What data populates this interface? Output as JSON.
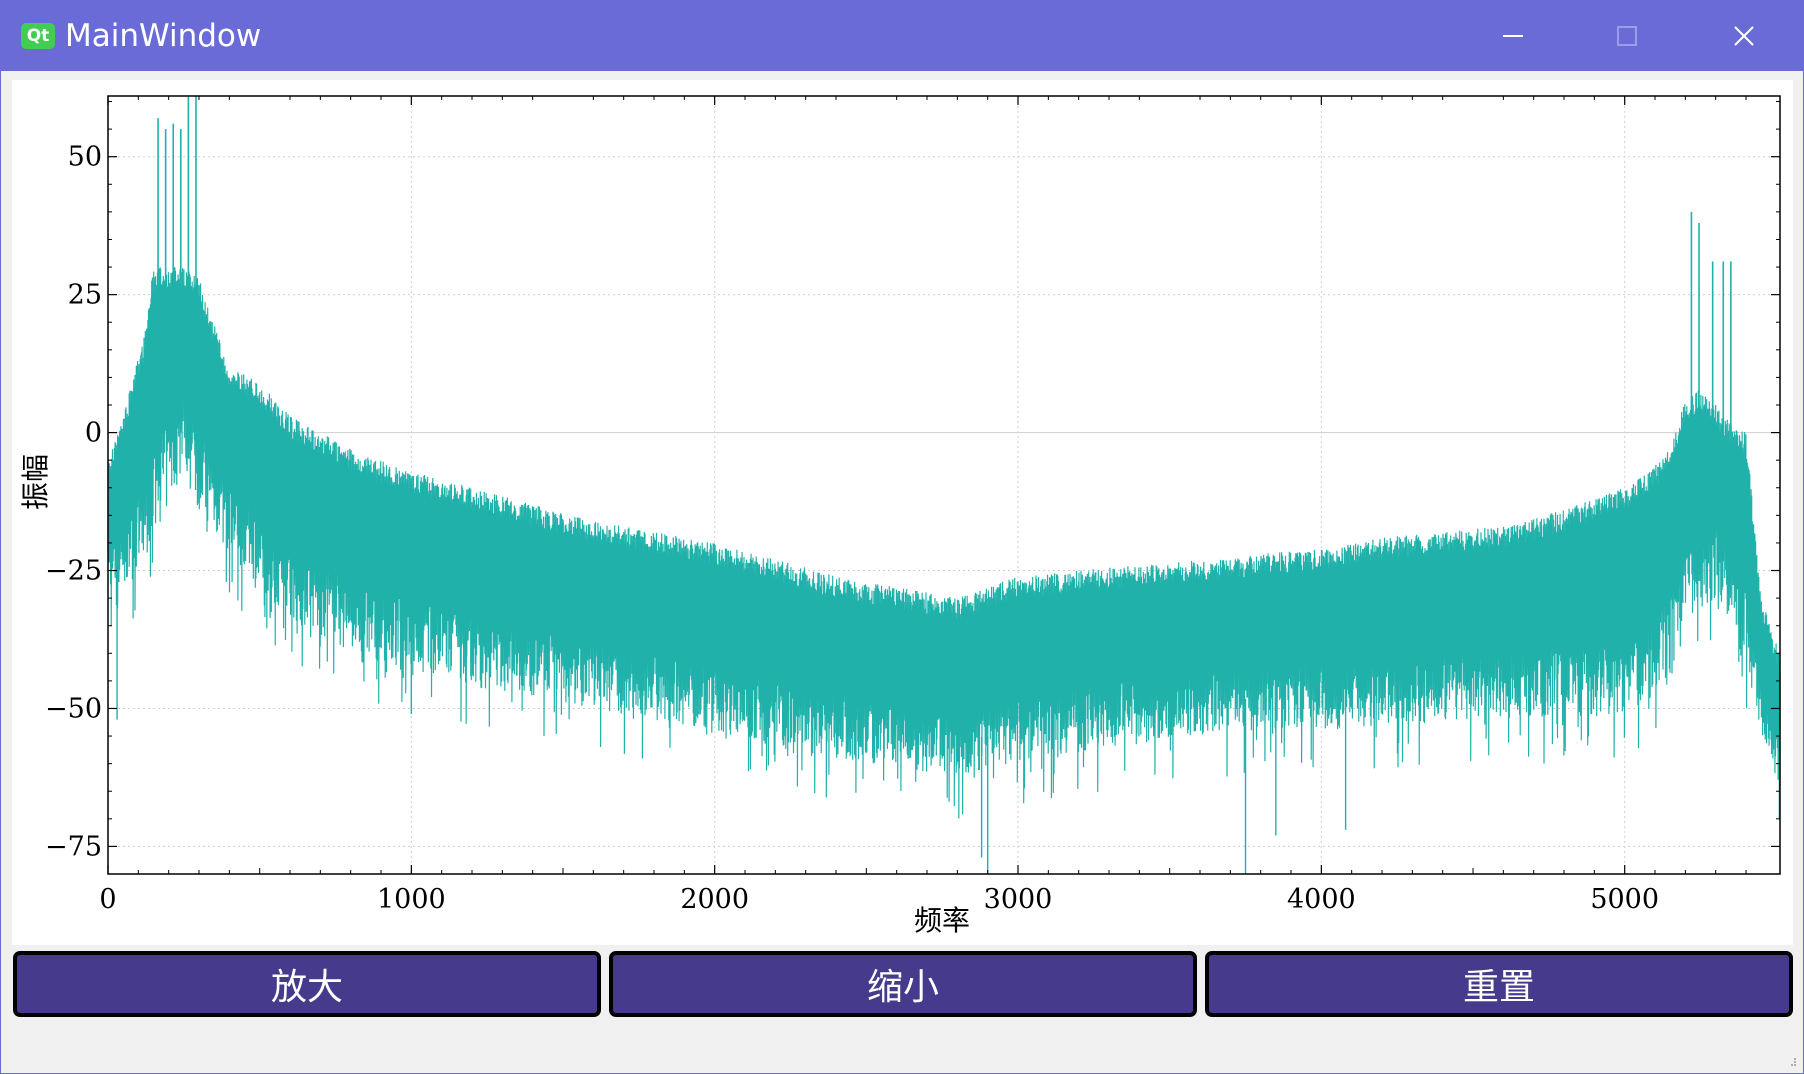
{
  "window": {
    "title": "MainWindow",
    "logo_text": "Qt",
    "accent_color": "#6b6bd8",
    "controls": [
      "minimize-icon",
      "maximize-icon",
      "close-icon"
    ]
  },
  "buttons": {
    "zoom_in": "放大",
    "zoom_out": "缩小",
    "reset": "重置",
    "color": "#453a8c"
  },
  "chart_data": {
    "type": "line",
    "title": "",
    "xlabel": "频率",
    "ylabel": "振幅",
    "xlim": [
      0,
      5512
    ],
    "ylim": [
      -80,
      61
    ],
    "xticks": [
      0,
      1000,
      2000,
      3000,
      4000,
      5000
    ],
    "xtick_labels": [
      "0",
      "1000",
      "2000",
      "3000",
      "4000",
      "5000"
    ],
    "yticks": [
      50,
      25,
      0,
      -25,
      -50,
      -75
    ],
    "ytick_labels": [
      "50",
      "25",
      "0",
      "−25",
      "−50",
      "−75"
    ],
    "grid": true,
    "legend": "none",
    "series": [
      {
        "color": "#20b2aa",
        "envelope_x": [
          0,
          60,
          120,
          150,
          200,
          250,
          300,
          400,
          500,
          600,
          800,
          1000,
          1200,
          1400,
          1600,
          1800,
          2000,
          2200,
          2400,
          2600,
          2800,
          3000,
          3200,
          3400,
          3600,
          3800,
          4000,
          4200,
          4400,
          4600,
          4800,
          5000,
          5100,
          5150,
          5200,
          5250,
          5300,
          5350,
          5400,
          5450,
          5512
        ],
        "upper": [
          -5,
          5,
          18,
          30,
          30,
          30,
          28,
          12,
          9,
          3,
          -3,
          -7,
          -10,
          -13,
          -16,
          -18,
          -20,
          -23,
          -26,
          -28,
          -30,
          -26,
          -25,
          -24,
          -23,
          -22,
          -21,
          -19,
          -18,
          -17,
          -14,
          -10,
          -6,
          -3,
          6,
          8,
          5,
          2,
          0,
          -30,
          -40
        ],
        "lower": [
          -30,
          -28,
          -24,
          -18,
          -14,
          -6,
          -14,
          -22,
          -28,
          -34,
          -40,
          -43,
          -46,
          -48,
          -50,
          -52,
          -54,
          -57,
          -59,
          -61,
          -62,
          -60,
          -58,
          -56,
          -55,
          -54,
          -54,
          -53,
          -52,
          -52,
          -52,
          -51,
          -48,
          -45,
          -36,
          -32,
          -30,
          -34,
          -44,
          -54,
          -65
        ],
        "peaks": [
          {
            "x": 165,
            "y": 57
          },
          {
            "x": 190,
            "y": 55
          },
          {
            "x": 215,
            "y": 56
          },
          {
            "x": 240,
            "y": 55
          },
          {
            "x": 265,
            "y": 61
          },
          {
            "x": 290,
            "y": 61
          },
          {
            "x": 5220,
            "y": 40
          },
          {
            "x": 5245,
            "y": 38
          },
          {
            "x": 5290,
            "y": 31
          },
          {
            "x": 5325,
            "y": 31
          },
          {
            "x": 5350,
            "y": 31
          }
        ],
        "dips": [
          {
            "x": 30,
            "y": -52
          },
          {
            "x": 1000,
            "y": -51
          },
          {
            "x": 2880,
            "y": -77
          },
          {
            "x": 2900,
            "y": -80
          },
          {
            "x": 3750,
            "y": -80
          },
          {
            "x": 3850,
            "y": -73
          },
          {
            "x": 4080,
            "y": -72
          },
          {
            "x": 5510,
            "y": -70
          }
        ]
      }
    ]
  }
}
